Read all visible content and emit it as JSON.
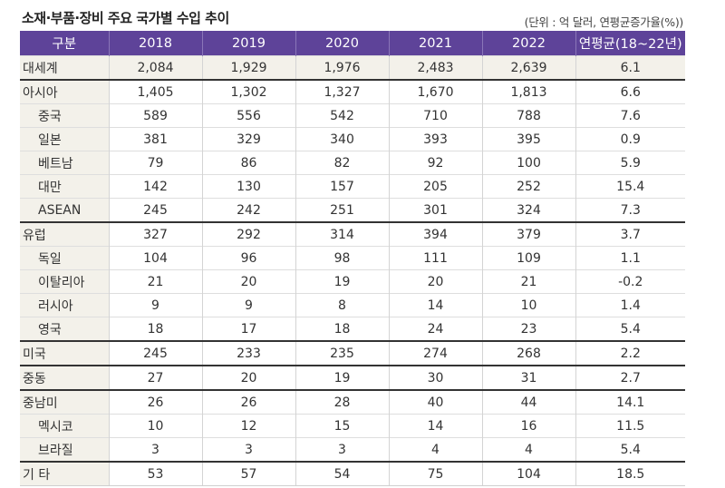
{
  "title": "소재·부품·장비 주요 국가별 수입 추이",
  "unit_note": "(단위 : 억 달러, 연평균증가율(%))",
  "colors": {
    "header_bg": "#5e4399",
    "label_bg": "#f3f1ea"
  },
  "columns": [
    "구분",
    "2018",
    "2019",
    "2020",
    "2021",
    "2022",
    "연평균(18~22년)"
  ],
  "rows": [
    {
      "name": "대세계",
      "level": 0,
      "values": [
        "2,084",
        "1,929",
        "1,976",
        "2,483",
        "2,639",
        "6.1"
      ]
    },
    {
      "name": "아시아",
      "level": 0,
      "values": [
        "1,405",
        "1,302",
        "1,327",
        "1,670",
        "1,813",
        "6.6"
      ]
    },
    {
      "name": "중국",
      "level": 1,
      "values": [
        "589",
        "556",
        "542",
        "710",
        "788",
        "7.6"
      ]
    },
    {
      "name": "일본",
      "level": 1,
      "values": [
        "381",
        "329",
        "340",
        "393",
        "395",
        "0.9"
      ]
    },
    {
      "name": "베트남",
      "level": 1,
      "values": [
        "79",
        "86",
        "82",
        "92",
        "100",
        "5.9"
      ]
    },
    {
      "name": "대만",
      "level": 1,
      "values": [
        "142",
        "130",
        "157",
        "205",
        "252",
        "15.4"
      ]
    },
    {
      "name": "ASEAN",
      "level": 1,
      "values": [
        "245",
        "242",
        "251",
        "301",
        "324",
        "7.3"
      ]
    },
    {
      "name": "유럽",
      "level": 0,
      "values": [
        "327",
        "292",
        "314",
        "394",
        "379",
        "3.7"
      ]
    },
    {
      "name": "독일",
      "level": 1,
      "values": [
        "104",
        "96",
        "98",
        "111",
        "109",
        "1.1"
      ]
    },
    {
      "name": "이탈리아",
      "level": 1,
      "values": [
        "21",
        "20",
        "19",
        "20",
        "21",
        "-0.2"
      ]
    },
    {
      "name": "러시아",
      "level": 1,
      "values": [
        "9",
        "9",
        "8",
        "14",
        "10",
        "1.4"
      ]
    },
    {
      "name": "영국",
      "level": 1,
      "values": [
        "18",
        "17",
        "18",
        "24",
        "23",
        "5.4"
      ]
    },
    {
      "name": "미국",
      "level": 0,
      "values": [
        "245",
        "233",
        "235",
        "274",
        "268",
        "2.2"
      ]
    },
    {
      "name": "중동",
      "level": 0,
      "values": [
        "27",
        "20",
        "19",
        "30",
        "31",
        "2.7"
      ]
    },
    {
      "name": "중남미",
      "level": 0,
      "values": [
        "26",
        "26",
        "28",
        "40",
        "44",
        "14.1"
      ]
    },
    {
      "name": "멕시코",
      "level": 1,
      "values": [
        "10",
        "12",
        "15",
        "14",
        "16",
        "11.5"
      ]
    },
    {
      "name": "브라질",
      "level": 1,
      "values": [
        "3",
        "3",
        "3",
        "4",
        "4",
        "5.4"
      ]
    },
    {
      "name": "기 타",
      "level": 0,
      "values": [
        "53",
        "57",
        "54",
        "75",
        "104",
        "18.5"
      ]
    }
  ]
}
